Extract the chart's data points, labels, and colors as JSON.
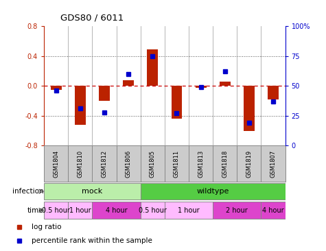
{
  "title": "GDS80 / 6011",
  "samples": [
    "GSM1804",
    "GSM1810",
    "GSM1812",
    "GSM1806",
    "GSM1805",
    "GSM1811",
    "GSM1813",
    "GSM1818",
    "GSM1819",
    "GSM1807"
  ],
  "log_ratio": [
    -0.05,
    -0.52,
    -0.2,
    0.08,
    0.49,
    -0.44,
    -0.02,
    0.06,
    -0.6,
    -0.18
  ],
  "percentile": [
    46,
    31,
    28,
    60,
    75,
    27,
    49,
    62,
    19,
    37
  ],
  "ylim": [
    -0.8,
    0.8
  ],
  "yticks_left": [
    -0.8,
    -0.4,
    0.0,
    0.4,
    0.8
  ],
  "yticks_right_labels": [
    "0",
    "25",
    "50",
    "75",
    "100%"
  ],
  "yticks_right_vals": [
    0,
    25,
    50,
    75,
    100
  ],
  "infection_groups": [
    {
      "label": "mock",
      "start": 0,
      "end": 4,
      "color": "#bbeeaa"
    },
    {
      "label": "wildtype",
      "start": 4,
      "end": 10,
      "color": "#55cc44"
    }
  ],
  "time_groups": [
    {
      "label": "0.5 hour",
      "start": 0,
      "end": 1,
      "color": "#ffbbff"
    },
    {
      "label": "1 hour",
      "start": 1,
      "end": 2,
      "color": "#ffbbff"
    },
    {
      "label": "4 hour",
      "start": 2,
      "end": 4,
      "color": "#dd44cc"
    },
    {
      "label": "0.5 hour",
      "start": 4,
      "end": 5,
      "color": "#ffbbff"
    },
    {
      "label": "1 hour",
      "start": 5,
      "end": 7,
      "color": "#ffbbff"
    },
    {
      "label": "2 hour",
      "start": 7,
      "end": 9,
      "color": "#dd44cc"
    },
    {
      "label": "4 hour",
      "start": 9,
      "end": 10,
      "color": "#dd44cc"
    }
  ],
  "bar_color": "#bb2200",
  "dot_color": "#0000cc",
  "bg_color": "#ffffff",
  "sample_box_color": "#cccccc",
  "grid_color": "#555555",
  "zero_line_color": "#cc0000",
  "legend_items": [
    {
      "label": "log ratio",
      "color": "#bb2200"
    },
    {
      "label": "percentile rank within the sample",
      "color": "#0000cc"
    }
  ]
}
